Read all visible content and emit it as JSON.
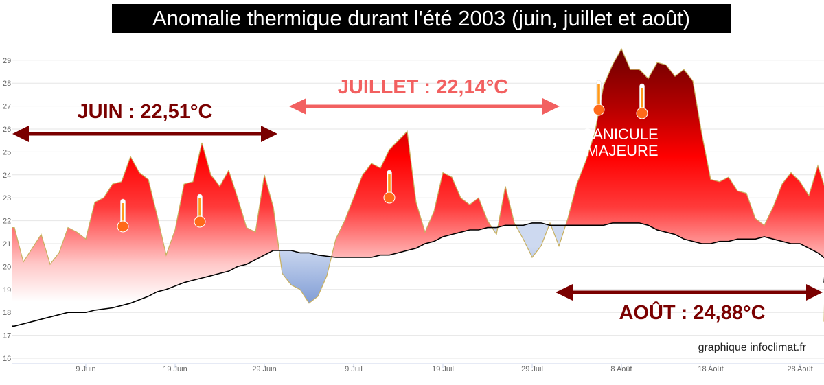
{
  "title": "Anomalie thermique durant l'été 2003 (juin, juillet et août)",
  "credit": "graphique infoclimat.fr",
  "annotations": {
    "june": "JUIN : 22,51°C",
    "july": "JUILLET : 22,14°C",
    "august": "AOÛT : 24,88°C",
    "canicule_line1": "CANICULE",
    "canicule_line2": "MAJEURE"
  },
  "colors": {
    "warm": "#ff0000",
    "warm_peak": "#7a0000",
    "cool": "#7f9fd9",
    "normal_line": "#000000",
    "june_arrow": "#7a0000",
    "july_arrow": "#f26060",
    "august_arrow": "#7a0000"
  },
  "chart_data": {
    "type": "area",
    "x_unit": "day of summer 2003 (1 = 1 Juin)",
    "ylim": [
      16,
      29.5
    ],
    "yticks": [
      16,
      17,
      18,
      19,
      20,
      21,
      22,
      23,
      24,
      25,
      26,
      27,
      28,
      29
    ],
    "xticks": [
      {
        "day": 9,
        "label": "9 Juin"
      },
      {
        "day": 19,
        "label": "19 Juin"
      },
      {
        "day": 29,
        "label": "29 Juin"
      },
      {
        "day": 39,
        "label": "9 Juil"
      },
      {
        "day": 49,
        "label": "19 Juil"
      },
      {
        "day": 59,
        "label": "29 Juil"
      },
      {
        "day": 69,
        "label": "8 Août"
      },
      {
        "day": 79,
        "label": "18 Août"
      },
      {
        "day": 89,
        "label": "28 Août"
      }
    ],
    "grid": true,
    "series": [
      {
        "role": "observed",
        "x": [
          1,
          2,
          3,
          4,
          5,
          6,
          7,
          8,
          9,
          10,
          11,
          12,
          13,
          14,
          15,
          16,
          17,
          18,
          19,
          20,
          21,
          22,
          23,
          24,
          25,
          26,
          27,
          28,
          29,
          30,
          31,
          32,
          33,
          34,
          35,
          36,
          37,
          38,
          39,
          40,
          41,
          42,
          43,
          44,
          45,
          46,
          47,
          48,
          49,
          50,
          51,
          52,
          53,
          54,
          55,
          56,
          57,
          58,
          59,
          60,
          61,
          62,
          63,
          64,
          65,
          66,
          67,
          68,
          69,
          70,
          71,
          72,
          73,
          74,
          75,
          76,
          77,
          78,
          79,
          80,
          81,
          82,
          83,
          84,
          85,
          86,
          87,
          88,
          89,
          90,
          91,
          92
        ],
        "values": [
          21.7,
          20.2,
          20.8,
          21.4,
          20.1,
          20.6,
          21.7,
          21.5,
          21.2,
          22.8,
          23.0,
          23.6,
          23.7,
          24.8,
          24.1,
          23.8,
          22.2,
          20.5,
          21.6,
          23.6,
          23.7,
          25.4,
          24.0,
          23.5,
          24.2,
          23.0,
          21.7,
          21.5,
          24.0,
          22.6,
          19.7,
          19.2,
          19.0,
          18.4,
          18.7,
          19.6,
          21.2,
          22.0,
          23.0,
          24.0,
          24.5,
          24.3,
          25.1,
          25.5,
          25.9,
          22.8,
          21.5,
          22.4,
          24.1,
          23.9,
          23.0,
          22.7,
          23.0,
          22.0,
          21.4,
          23.5,
          21.9,
          21.2,
          20.4,
          20.9,
          21.9,
          20.9,
          22.1,
          23.6,
          24.6,
          25.8,
          27.9,
          28.8,
          29.5,
          28.6,
          28.6,
          28.2,
          28.9,
          28.8,
          28.3,
          28.6,
          28.1,
          25.8,
          23.8,
          23.7,
          23.9,
          23.3,
          23.2,
          22.1,
          21.8,
          22.6,
          23.6,
          24.1,
          23.7,
          23.1,
          24.4,
          23.2
        ],
        "tail": [
          21.6,
          19.3,
          17.6
        ]
      },
      {
        "role": "normal",
        "x": [
          1,
          4,
          7,
          9,
          10,
          12,
          13,
          14,
          16,
          17,
          18,
          20,
          21,
          22,
          23,
          24,
          25,
          26,
          27,
          28,
          30,
          31,
          32,
          33,
          34,
          35,
          37,
          38,
          40,
          41,
          42,
          43,
          44,
          45,
          46,
          47,
          48,
          49,
          50,
          51,
          52,
          53,
          54,
          55,
          56,
          57,
          58,
          59,
          60,
          61,
          62,
          63,
          64,
          65,
          66,
          67,
          68,
          69,
          70,
          71,
          72,
          73,
          74,
          75,
          76,
          77,
          78,
          79,
          80,
          81,
          82,
          83,
          84,
          85,
          86,
          87,
          88,
          89,
          90,
          91,
          92
        ],
        "values": [
          17.4,
          17.7,
          18.0,
          18.0,
          18.1,
          18.2,
          18.3,
          18.4,
          18.7,
          18.9,
          19.0,
          19.3,
          19.4,
          19.5,
          19.6,
          19.7,
          19.8,
          20.0,
          20.1,
          20.3,
          20.7,
          20.7,
          20.7,
          20.6,
          20.6,
          20.5,
          20.4,
          20.4,
          20.4,
          20.4,
          20.5,
          20.5,
          20.6,
          20.7,
          20.8,
          21.0,
          21.1,
          21.3,
          21.4,
          21.5,
          21.6,
          21.6,
          21.7,
          21.7,
          21.8,
          21.8,
          21.8,
          21.9,
          21.9,
          21.8,
          21.8,
          21.8,
          21.8,
          21.8,
          21.8,
          21.8,
          21.9,
          21.9,
          21.9,
          21.9,
          21.8,
          21.6,
          21.5,
          21.4,
          21.2,
          21.1,
          21.0,
          21.0,
          21.1,
          21.1,
          21.2,
          21.2,
          21.2,
          21.3,
          21.2,
          21.1,
          21.0,
          21.0,
          20.8,
          20.6,
          20.3
        ],
        "tail": [
          20.1,
          19.7,
          19.3
        ]
      }
    ]
  }
}
